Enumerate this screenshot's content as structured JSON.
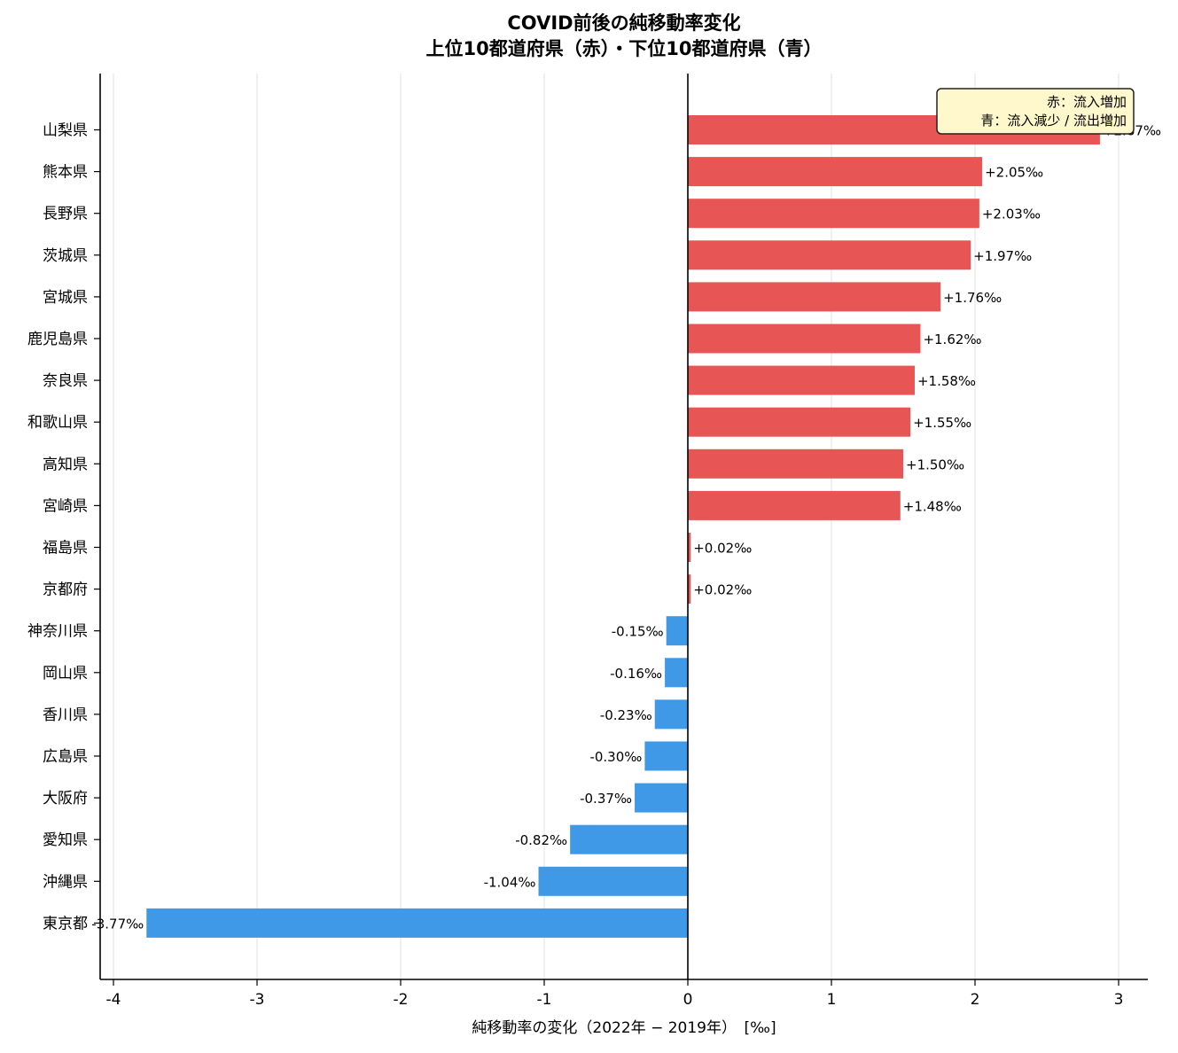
{
  "chart_data": {
    "type": "bar",
    "orientation": "horizontal",
    "title_lines": [
      "COVID前後の純移動率変化",
      "上位10都道府県（赤）・下位10都道府県（青）"
    ],
    "xlabel": "純移動率の変化（2022年 − 2019年）　[‰]",
    "ylabel": "",
    "xlim": [
      -4.1,
      3.2
    ],
    "xticks": [
      -4,
      -3,
      -2,
      -1,
      0,
      1,
      2,
      3
    ],
    "xtick_labels": [
      "-4",
      "-3",
      "-2",
      "-1",
      "0",
      "1",
      "2",
      "3"
    ],
    "grid": "vertical",
    "categories": [
      "山梨県",
      "熊本県",
      "長野県",
      "茨城県",
      "宮城県",
      "鹿児島県",
      "奈良県",
      "和歌山県",
      "高知県",
      "宮崎県",
      "福島県",
      "京都府",
      "神奈川県",
      "岡山県",
      "香川県",
      "広島県",
      "大阪府",
      "愛知県",
      "沖縄県",
      "東京都"
    ],
    "values": [
      2.87,
      2.05,
      2.03,
      1.97,
      1.76,
      1.62,
      1.58,
      1.55,
      1.5,
      1.48,
      0.02,
      0.02,
      -0.15,
      -0.16,
      -0.23,
      -0.3,
      -0.37,
      -0.82,
      -1.04,
      -3.77
    ],
    "data_labels": [
      "+2.87‰",
      "+2.05‰",
      "+2.03‰",
      "+1.97‰",
      "+1.76‰",
      "+1.62‰",
      "+1.58‰",
      "+1.55‰",
      "+1.50‰",
      "+1.48‰",
      "+0.02‰",
      "+0.02‰",
      "-0.15‰",
      "-0.16‰",
      "-0.23‰",
      "-0.30‰",
      "-0.37‰",
      "-0.82‰",
      "-1.04‰",
      "-3.77‰"
    ],
    "colors": {
      "positive": "#e85555",
      "negative": "#3f99e6",
      "grid": "#e6e6e6",
      "legend_bg": "#fff8cc"
    },
    "legend": {
      "placement": "top-right",
      "lines": [
        "赤：流入増加",
        "青：流入減少 / 流出増加"
      ]
    }
  }
}
